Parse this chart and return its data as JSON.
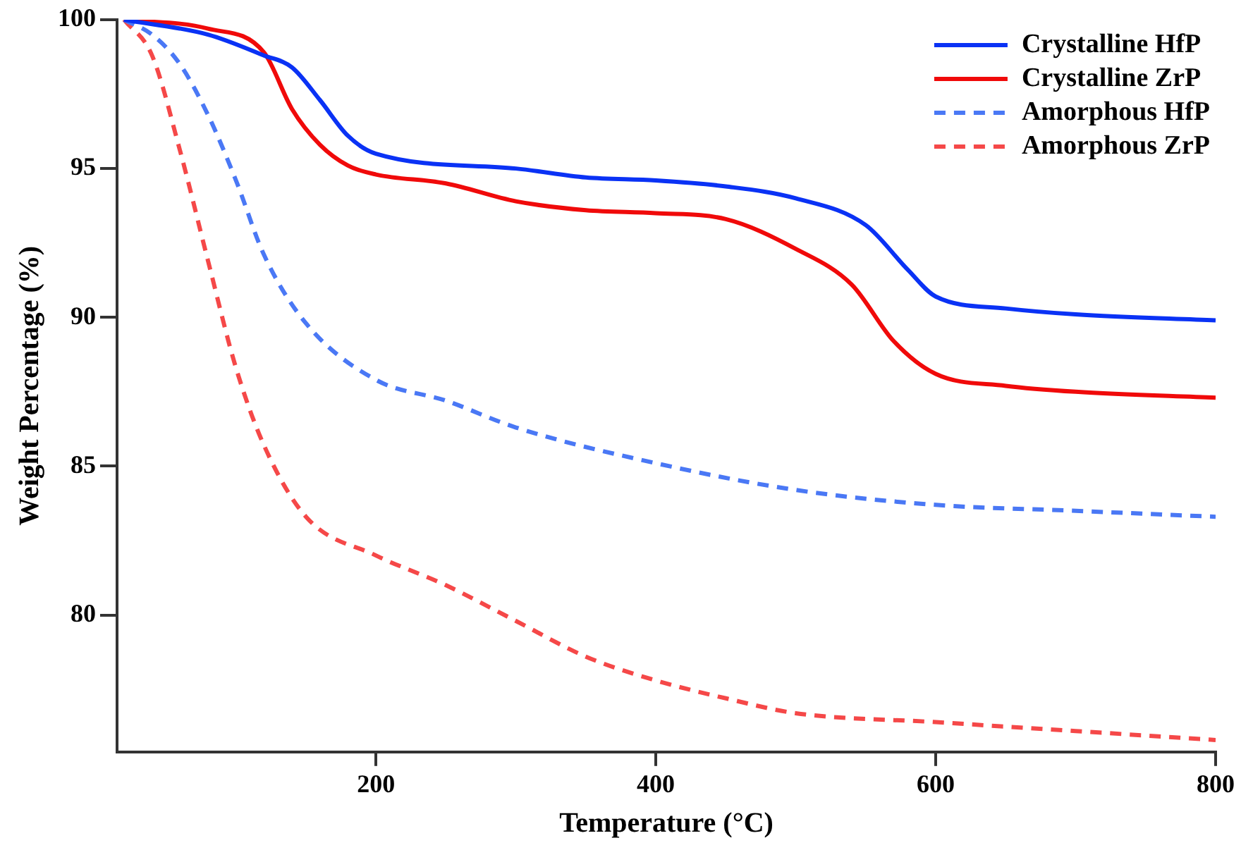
{
  "chart_data": {
    "type": "line",
    "xlabel": "Temperature (°C)",
    "ylabel": "Weight Percentage (%)",
    "xlim": [
      15,
      800
    ],
    "xticks": [
      200,
      400,
      600,
      800
    ],
    "ylim": [
      75.4,
      100
    ],
    "yticks": [
      80,
      85,
      90,
      95,
      100
    ],
    "grid": false,
    "legend": "top right",
    "marker": "none",
    "series": [
      {
        "name": "Crystalline HfP",
        "color": "#0a32f5",
        "line_style": "solid",
        "x": [
          20,
          80,
          120,
          140,
          160,
          180,
          200,
          300,
          350,
          400,
          450,
          500,
          550,
          580,
          600,
          650,
          700,
          800
        ],
        "values": [
          100,
          99.5,
          98.8,
          98.4,
          97.3,
          96.1,
          95.5,
          95.0,
          94.7,
          94.6,
          94.4,
          94.0,
          93.1,
          91.6,
          90.7,
          90.3,
          90.1,
          89.9
        ]
      },
      {
        "name": "Crystalline ZrP",
        "color": "#f00a0a",
        "line_style": "solid",
        "x": [
          20,
          80,
          120,
          140,
          160,
          180,
          200,
          250,
          300,
          350,
          400,
          450,
          500,
          540,
          570,
          600,
          650,
          700,
          800
        ],
        "values": [
          100,
          99.7,
          98.9,
          97.0,
          95.8,
          95.1,
          94.8,
          94.5,
          93.9,
          93.6,
          93.5,
          93.3,
          92.3,
          91.1,
          89.2,
          88.1,
          87.7,
          87.5,
          87.3
        ]
      },
      {
        "name": "Amorphous HfP",
        "color": "#4a78f5",
        "line_style": "dashed",
        "x": [
          20,
          40,
          60,
          80,
          100,
          120,
          150,
          200,
          250,
          300,
          400,
          500,
          600,
          700,
          800
        ],
        "values": [
          100,
          99.5,
          98.5,
          96.8,
          94.6,
          92.1,
          89.8,
          87.9,
          87.2,
          86.3,
          85.1,
          84.2,
          83.7,
          83.5,
          83.3
        ]
      },
      {
        "name": "Amorphous ZrP",
        "color": "#f54848",
        "line_style": "dashed",
        "x": [
          20,
          40,
          60,
          80,
          100,
          120,
          150,
          200,
          250,
          300,
          350,
          400,
          450,
          500,
          600,
          700,
          800
        ],
        "values": [
          100,
          98.8,
          95.6,
          91.9,
          88.3,
          85.7,
          83.3,
          82.0,
          81.0,
          79.8,
          78.6,
          77.8,
          77.2,
          76.7,
          76.4,
          76.1,
          75.8
        ]
      }
    ]
  }
}
